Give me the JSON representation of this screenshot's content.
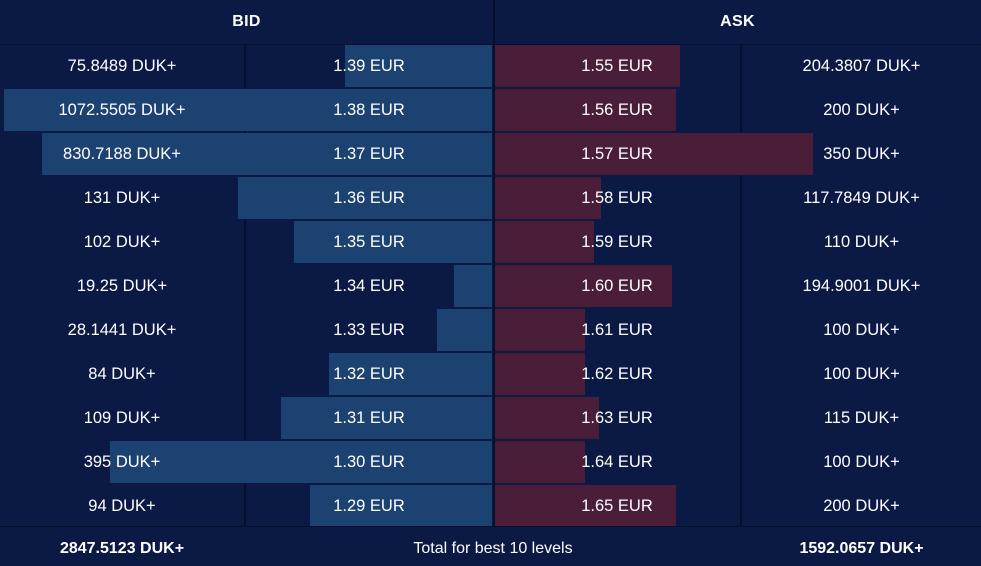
{
  "header": {
    "bid_label": "BID",
    "ask_label": "ASK"
  },
  "colors": {
    "background": "#0b1a45",
    "bid_bar": "#1c4272",
    "ask_bar": "#4a1d39"
  },
  "rows": [
    {
      "bid_qty": "75.8489 DUK+",
      "bid_price": "1.39 EUR",
      "ask_price": "1.55 EUR",
      "ask_qty": "204.3807 DUK+"
    },
    {
      "bid_qty": "1072.5505 DUK+",
      "bid_price": "1.38 EUR",
      "ask_price": "1.56 EUR",
      "ask_qty": "200 DUK+"
    },
    {
      "bid_qty": "830.7188 DUK+",
      "bid_price": "1.37 EUR",
      "ask_price": "1.57 EUR",
      "ask_qty": "350 DUK+"
    },
    {
      "bid_qty": "131 DUK+",
      "bid_price": "1.36 EUR",
      "ask_price": "1.58 EUR",
      "ask_qty": "117.7849 DUK+"
    },
    {
      "bid_qty": "102 DUK+",
      "bid_price": "1.35 EUR",
      "ask_price": "1.59 EUR",
      "ask_qty": "110 DUK+"
    },
    {
      "bid_qty": "19.25 DUK+",
      "bid_price": "1.34 EUR",
      "ask_price": "1.60 EUR",
      "ask_qty": "194.9001 DUK+"
    },
    {
      "bid_qty": "28.1441 DUK+",
      "bid_price": "1.33 EUR",
      "ask_price": "1.61 EUR",
      "ask_qty": "100 DUK+"
    },
    {
      "bid_qty": "84 DUK+",
      "bid_price": "1.32 EUR",
      "ask_price": "1.62 EUR",
      "ask_qty": "100 DUK+"
    },
    {
      "bid_qty": "109 DUK+",
      "bid_price": "1.31 EUR",
      "ask_price": "1.63 EUR",
      "ask_qty": "115 DUK+"
    },
    {
      "bid_qty": "395 DUK+",
      "bid_price": "1.30 EUR",
      "ask_price": "1.64 EUR",
      "ask_qty": "100 DUK+"
    },
    {
      "bid_qty": "94 DUK+",
      "bid_price": "1.29 EUR",
      "ask_price": "1.65 EUR",
      "ask_qty": "200 DUK+"
    }
  ],
  "footer": {
    "bid_total": "2847.5123 DUK+",
    "label": "Total for best 10 levels",
    "ask_total": "1592.0657 DUK+"
  }
}
